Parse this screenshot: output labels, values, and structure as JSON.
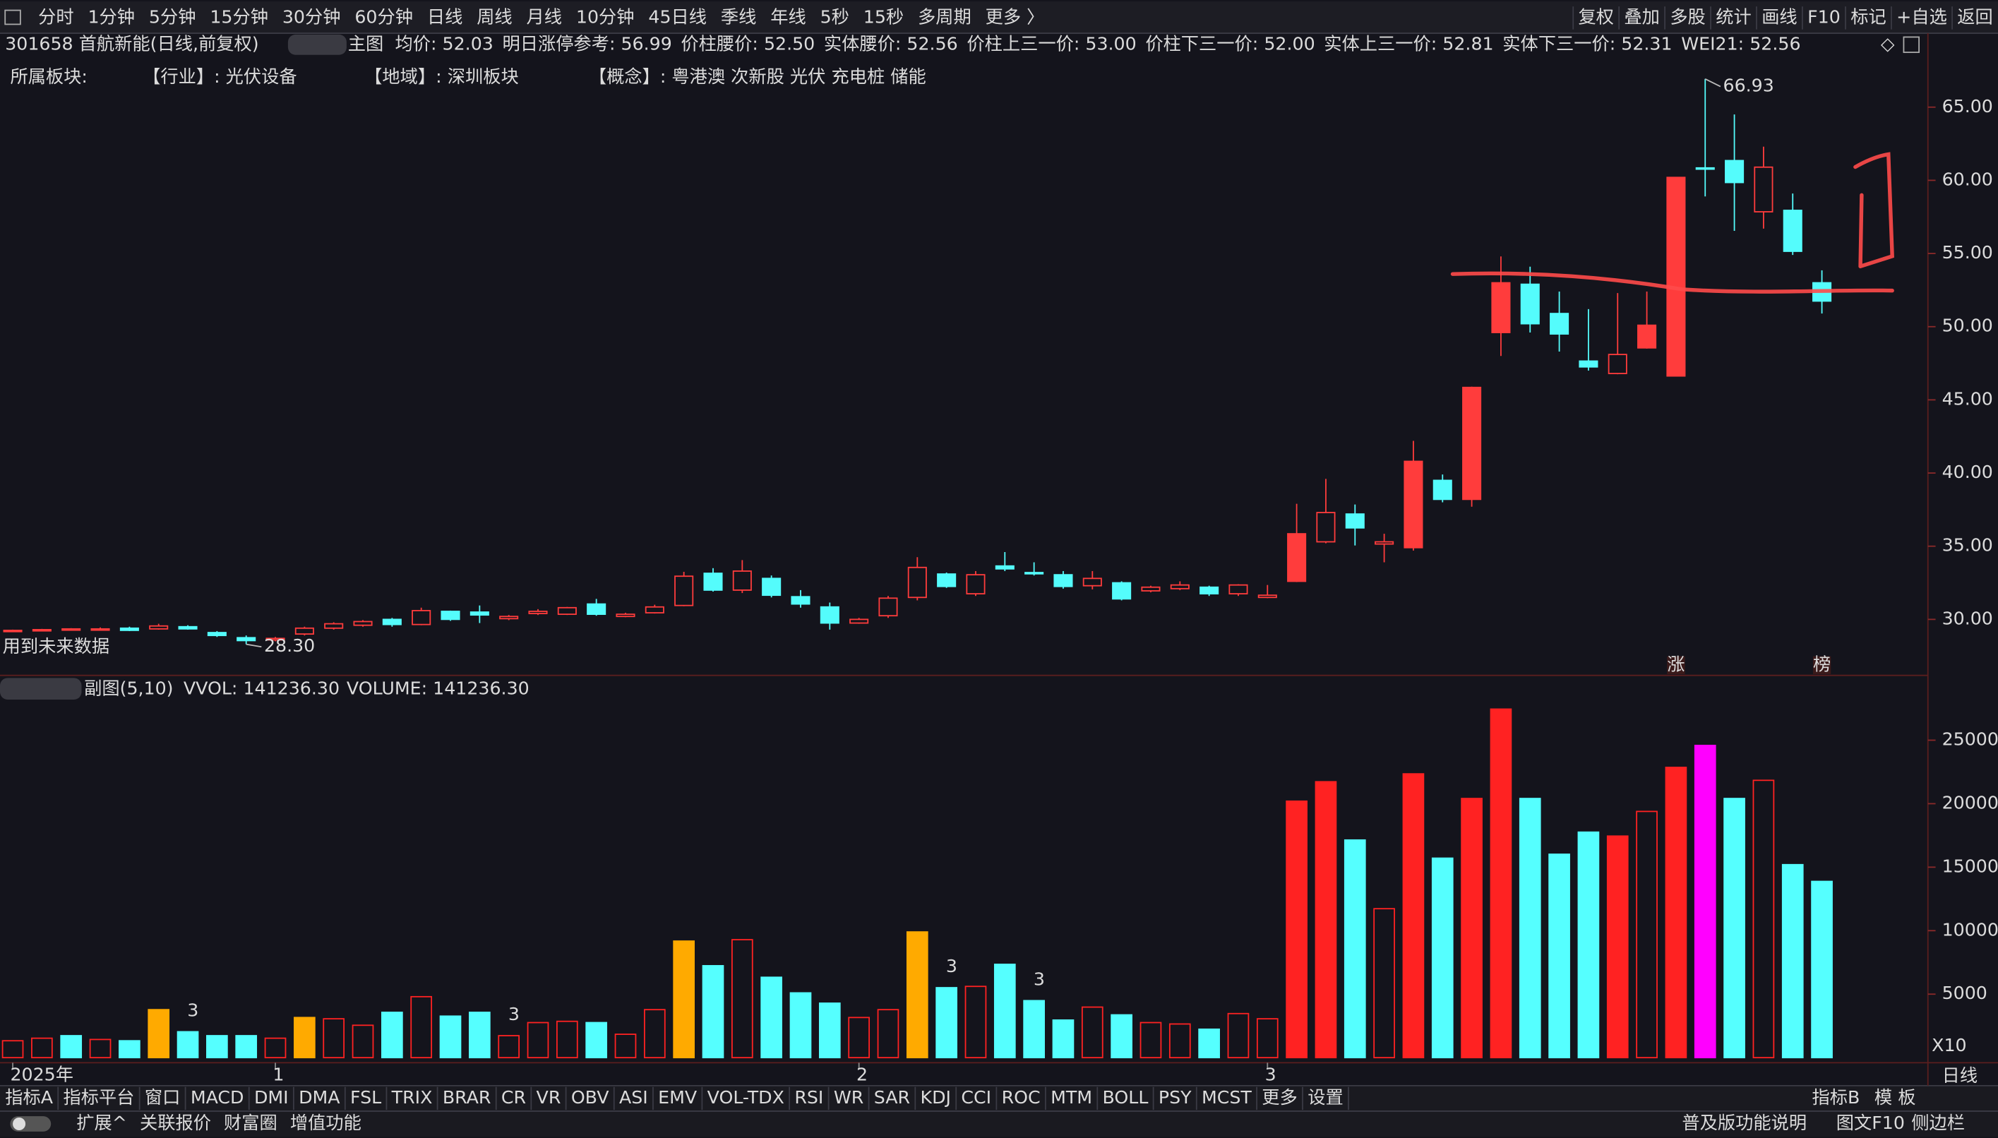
{
  "toolbar": {
    "left": [
      "分时",
      "1分钟",
      "5分钟",
      "15分钟",
      "30分钟",
      "60分钟",
      "日线",
      "周线",
      "月线",
      "10分钟",
      "45日线",
      "季线",
      "年线",
      "5秒",
      "15秒",
      "多周期",
      "更多 〉"
    ],
    "right": [
      "复权",
      "叠加",
      "多股",
      "统计",
      "画线",
      "F10",
      "标记",
      "+自选",
      "返回"
    ]
  },
  "header": {
    "code": "301658 首航新能(日线,前复权)",
    "main": "主图",
    "stats": [
      "均价: 52.03",
      "明日涨停参考: 56.99",
      "价柱腰价: 52.50",
      "实体腰价: 52.56",
      "价柱上三一价: 53.00",
      "价柱下三一价: 52.00",
      "实体上三一价: 52.81",
      "实体下三一价: 52.31"
    ],
    "wei": "WEI21: 52.56"
  },
  "sectors": [
    "所属板块:",
    "【行业】: 光伏设备",
    "【地域】: 深圳板块",
    "【概念】: 粤港澳 次新股 光伏 充电桩 储能"
  ],
  "future_note": "用到未来数据",
  "volume_header": {
    "name": "副图(5,10)",
    "vvol": "VVOL: 141236.30",
    "volume": "VOLUME: 141236.30"
  },
  "tabs": {
    "left": [
      "指标A",
      "指标平台",
      "窗口",
      "MACD",
      "DMI",
      "DMA",
      "FSL",
      "TRIX",
      "BRAR",
      "CR",
      "VR",
      "OBV",
      "ASI",
      "EMV",
      "VOL-TDX",
      "RSI",
      "WR",
      "SAR",
      "KDJ",
      "CCI",
      "ROC",
      "MTM",
      "BOLL",
      "PSY",
      "MCST",
      "更多",
      "设置"
    ],
    "right": [
      "指标B",
      "模 板"
    ],
    "period": "日线"
  },
  "footer": {
    "left": [
      "扩展^",
      "关联报价",
      "财富圈",
      "增值功能"
    ],
    "right": [
      "普及版功能说明",
      "图文F10",
      "侧边栏"
    ]
  },
  "chart_data": [
    {
      "type": "candlestick",
      "categories": [
        "2025年",
        null,
        null,
        null,
        null,
        null,
        null,
        null,
        null,
        "1",
        null,
        null,
        null,
        null,
        null,
        null,
        null,
        null,
        null,
        null,
        null,
        null,
        null,
        null,
        null,
        null,
        null,
        null,
        null,
        "2",
        null,
        null,
        null,
        null,
        null,
        null,
        null,
        null,
        null,
        null,
        null,
        null,
        null,
        "3",
        null,
        null,
        null,
        null,
        null,
        null,
        null,
        null,
        null,
        null,
        null,
        null,
        null,
        null,
        null,
        null,
        null,
        null,
        null
      ],
      "open": [
        29.2,
        29.25,
        29.3,
        29.3,
        29.4,
        29.35,
        29.5,
        29.1,
        28.75,
        28.6,
        29.0,
        29.4,
        29.6,
        30.0,
        29.65,
        30.55,
        30.5,
        30.05,
        30.4,
        30.35,
        31.05,
        30.2,
        30.45,
        30.95,
        33.15,
        32.0,
        32.8,
        31.55,
        30.85,
        29.75,
        30.25,
        31.5,
        33.1,
        31.75,
        33.65,
        33.2,
        33.05,
        32.3,
        32.5,
        31.95,
        32.1,
        32.2,
        31.75,
        31.5,
        32.6,
        35.3,
        37.2,
        35.15,
        34.9,
        39.5,
        38.2,
        49.6,
        52.9,
        50.9,
        47.65,
        46.8,
        48.55,
        46.63,
        60.85,
        61.35,
        57.85,
        57.95,
        53.0
      ],
      "high": [
        29.3,
        29.35,
        29.4,
        29.45,
        29.5,
        29.7,
        29.6,
        29.2,
        28.9,
        28.8,
        29.5,
        29.8,
        29.95,
        30.1,
        30.8,
        30.6,
        30.95,
        30.3,
        30.7,
        30.85,
        31.4,
        30.45,
        31.0,
        33.25,
        33.5,
        34.05,
        33.0,
        32.0,
        31.15,
        30.1,
        31.6,
        34.25,
        33.2,
        33.3,
        34.6,
        33.9,
        33.3,
        33.3,
        32.6,
        32.3,
        32.6,
        32.3,
        32.4,
        32.35,
        37.9,
        39.6,
        37.85,
        35.85,
        42.2,
        39.9,
        45.9,
        54.8,
        54.1,
        52.4,
        51.2,
        52.3,
        52.4,
        60.2,
        66.93,
        64.5,
        62.3,
        59.1,
        53.85
      ],
      "low": [
        29.15,
        29.2,
        29.25,
        29.25,
        29.2,
        29.3,
        29.3,
        28.8,
        28.3,
        28.5,
        28.9,
        29.3,
        29.5,
        29.5,
        29.6,
        29.9,
        29.75,
        29.95,
        30.3,
        30.3,
        30.25,
        30.15,
        30.4,
        30.9,
        31.9,
        31.8,
        31.5,
        30.8,
        29.3,
        29.7,
        30.1,
        31.3,
        32.15,
        31.6,
        33.3,
        33.0,
        32.1,
        32.05,
        31.3,
        31.85,
        32.0,
        31.6,
        31.6,
        31.45,
        32.55,
        35.2,
        35.05,
        33.9,
        34.7,
        38.0,
        37.7,
        48.0,
        49.6,
        48.3,
        47.0,
        46.75,
        48.5,
        46.6,
        58.9,
        56.55,
        56.7,
        54.9,
        50.9
      ],
      "close": [
        29.25,
        29.3,
        29.35,
        29.35,
        29.25,
        29.55,
        29.35,
        28.9,
        28.55,
        28.7,
        29.4,
        29.7,
        29.85,
        29.65,
        30.6,
        30.0,
        30.3,
        30.2,
        30.55,
        30.8,
        30.35,
        30.35,
        30.85,
        32.95,
        32.0,
        33.3,
        31.65,
        31.05,
        29.75,
        30.0,
        31.45,
        33.55,
        32.25,
        33.05,
        33.45,
        33.15,
        32.25,
        32.8,
        31.4,
        32.2,
        32.35,
        31.75,
        32.35,
        31.65,
        35.85,
        37.3,
        36.25,
        35.3,
        40.8,
        38.2,
        45.85,
        53.0,
        50.2,
        49.5,
        47.25,
        48.1,
        50.1,
        60.2,
        60.85,
        59.85,
        60.9,
        55.15,
        51.75
      ],
      "filled": [
        false,
        false,
        false,
        false,
        true,
        false,
        true,
        true,
        true,
        false,
        false,
        false,
        false,
        true,
        false,
        true,
        true,
        false,
        false,
        false,
        true,
        false,
        false,
        false,
        true,
        false,
        true,
        true,
        true,
        false,
        false,
        false,
        true,
        false,
        true,
        true,
        true,
        false,
        true,
        false,
        false,
        true,
        false,
        false,
        true,
        false,
        true,
        false,
        true,
        true,
        true,
        true,
        true,
        true,
        true,
        false,
        true,
        true,
        true,
        true,
        false,
        true,
        true
      ],
      "up_color": "#ff3c3c",
      "down_color": "#54fcfc",
      "high_label": "66.93",
      "low_label": "28.30",
      "annotations": [
        "涨",
        "榜"
      ],
      "ylim": [
        26.26,
        68.31
      ],
      "yticks": [
        {
          "value": 30,
          "label": "30.00"
        },
        {
          "value": 35,
          "label": "35.00"
        },
        {
          "value": 40,
          "label": "40.00"
        },
        {
          "value": 45,
          "label": "45.00"
        },
        {
          "value": 50,
          "label": "50.00"
        },
        {
          "value": 55,
          "label": "55.00"
        },
        {
          "value": 60,
          "label": "60.00"
        },
        {
          "value": 65,
          "label": "65.00"
        }
      ],
      "grid": false
    },
    {
      "type": "bar",
      "values": [
        1330,
        1530,
        1730,
        1430,
        1330,
        3780,
        2040,
        1730,
        1730,
        1530,
        3160,
        3060,
        2550,
        3570,
        4800,
        3270,
        3570,
        1730,
        2760,
        2860,
        2760,
        1840,
        3780,
        9180,
        7240,
        9290,
        6330,
        5100,
        4290,
        3160,
        3780,
        9900,
        5510,
        5610,
        7350,
        4490,
        2960,
        3980,
        3370,
        2760,
        2650,
        2240,
        3470,
        3060,
        20200,
        21730,
        17140,
        11730,
        22350,
        15710,
        20410,
        27450,
        20410,
        16020,
        17760,
        17450,
        19390,
        22860,
        24590,
        20410,
        21840,
        15200,
        13880
      ],
      "colors": [
        "#f22",
        "#f22",
        "#5ff",
        "#f22",
        "#5ff",
        "#fa0",
        "#5ff",
        "#5ff",
        "#5ff",
        "#f22",
        "#fa0",
        "#f22",
        "#f22",
        "#5ff",
        "#f22",
        "#5ff",
        "#5ff",
        "#f22",
        "#f22",
        "#f22",
        "#5ff",
        "#f22",
        "#f22",
        "#fa0",
        "#5ff",
        "#f22",
        "#5ff",
        "#5ff",
        "#5ff",
        "#f22",
        "#f22",
        "#fa0",
        "#5ff",
        "#f22",
        "#5ff",
        "#5ff",
        "#5ff",
        "#f22",
        "#5ff",
        "#f22",
        "#f22",
        "#5ff",
        "#f22",
        "#f22",
        "#f22",
        "#f22",
        "#5ff",
        "#f22",
        "#f22",
        "#5ff",
        "#f22",
        "#f22",
        "#5ff",
        "#5ff",
        "#5ff",
        "#f22",
        "#f22",
        "#f22",
        "#f0f",
        "#5ff",
        "#f22",
        "#5ff",
        "#5ff"
      ],
      "filled": [
        false,
        false,
        true,
        false,
        true,
        true,
        true,
        true,
        true,
        false,
        true,
        false,
        false,
        true,
        false,
        true,
        true,
        false,
        false,
        false,
        true,
        false,
        false,
        true,
        true,
        false,
        true,
        true,
        true,
        false,
        false,
        true,
        true,
        false,
        true,
        true,
        true,
        false,
        true,
        false,
        false,
        true,
        false,
        false,
        true,
        true,
        true,
        false,
        true,
        true,
        true,
        true,
        true,
        true,
        true,
        true,
        false,
        true,
        true,
        true,
        false,
        true,
        true
      ],
      "annotations": [
        "3",
        "3",
        "3",
        "3"
      ],
      "unit_label": "X10",
      "ylim": [
        0,
        29000
      ],
      "yticks": [
        5000,
        10000,
        15000,
        20000,
        25000
      ],
      "grid": false
    }
  ]
}
